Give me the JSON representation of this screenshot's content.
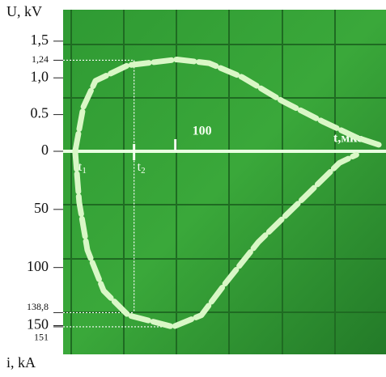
{
  "chart_data": {
    "type": "line",
    "y_label": "U, kV",
    "y2_label": "i, kA",
    "x_label": "t,мкс",
    "xlim": [
      -6,
      299
    ],
    "xticks": [
      {
        "value": 100,
        "label": "100"
      }
    ],
    "ylim": [
      0,
      1.84
    ],
    "yticks": [
      0,
      0.5,
      {
        "value": 1.0,
        "label": "1,0"
      },
      {
        "value": 1.24,
        "label": "1,24"
      },
      {
        "value": 1.5,
        "label": "1,5"
      }
    ],
    "y2lim": [
      0,
      174
    ],
    "y2ticks": [
      50,
      100,
      {
        "value": 138.8,
        "label": "138,8"
      },
      150,
      151
    ],
    "markers": [
      {
        "name": "t",
        "sub": "1",
        "x": 5.4
      },
      {
        "name": "t",
        "sub": "2",
        "x": 61
      }
    ],
    "series": [
      {
        "color": "#d9f7c6",
        "x": [
          5.4,
          13,
          24.6,
          55,
          101.5,
          132,
          163,
          201.5,
          240,
          271,
          294
        ],
        "values": [
          0,
          0.6,
          0.96,
          1.17,
          1.25,
          1.2,
          1.01,
          0.68,
          0.4,
          0.19,
          0.08
        ]
      },
      {
        "color": "#d9f7c6",
        "axis": "y2",
        "x": [
          5.4,
          9.2,
          16.9,
          32.3,
          55.4,
          97.7,
          124.6,
          147.7,
          178.5,
          217,
          255,
          271
        ],
        "values": [
          0,
          44,
          85,
          120,
          141,
          151,
          141,
          113,
          78,
          44,
          10,
          3
        ]
      }
    ]
  }
}
